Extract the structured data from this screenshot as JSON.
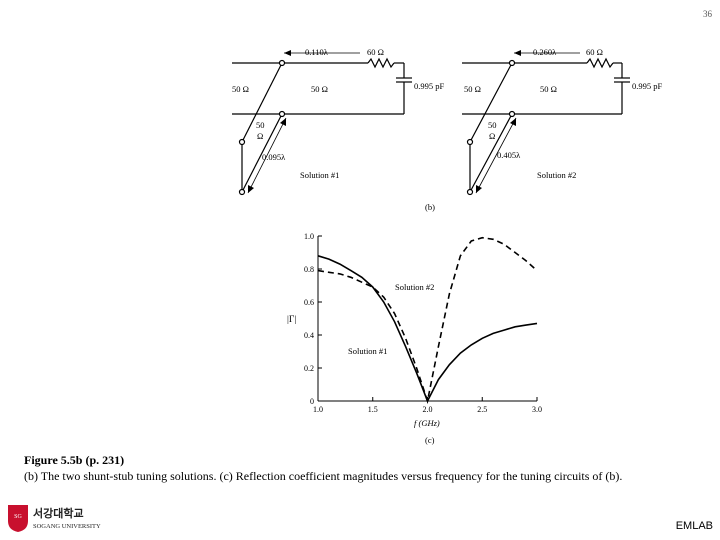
{
  "slide": {
    "number": "36",
    "footer_label": "EMLAB"
  },
  "circuits": [
    {
      "stub_length_label": "0.110λ",
      "resistor_label": "60 Ω",
      "capacitor_label": "0.995 pF",
      "left_line_label": "50 Ω",
      "mid_line_label": "50 Ω",
      "stub_impedance_label": "50",
      "stub_impedance_unit": "Ω",
      "stub_distance_label": "0.095λ",
      "solution_label": "Solution #1"
    },
    {
      "stub_length_label": "0.260λ",
      "resistor_label": "60 Ω",
      "capacitor_label": "0.995 pF",
      "left_line_label": "50 Ω",
      "mid_line_label": "50 Ω",
      "stub_impedance_label": "50",
      "stub_impedance_unit": "Ω",
      "stub_distance_label": "0.405λ",
      "solution_label": "Solution #2"
    }
  ],
  "panel_b_label": "(b)",
  "panel_c_label": "(c)",
  "chart_data": {
    "type": "line",
    "xlabel": "f (GHz)",
    "ylabel": "|Γ|",
    "xlim": [
      1.0,
      3.0
    ],
    "ylim": [
      0,
      1.0
    ],
    "x_ticks": [
      "1.0",
      "1.5",
      "2.0",
      "2.5",
      "3.0"
    ],
    "y_ticks": [
      "0",
      "0.2",
      "0.4",
      "0.6",
      "0.8",
      "1.0"
    ],
    "grid": false,
    "series": [
      {
        "name": "Solution #1",
        "style": "solid",
        "x": [
          1.0,
          1.1,
          1.2,
          1.3,
          1.4,
          1.5,
          1.6,
          1.7,
          1.8,
          1.9,
          2.0,
          2.1,
          2.2,
          2.3,
          2.4,
          2.5,
          2.6,
          2.7,
          2.8,
          2.9,
          3.0
        ],
        "y": [
          0.88,
          0.86,
          0.83,
          0.79,
          0.75,
          0.69,
          0.6,
          0.48,
          0.33,
          0.17,
          0.0,
          0.13,
          0.22,
          0.29,
          0.34,
          0.38,
          0.41,
          0.43,
          0.45,
          0.46,
          0.47
        ]
      },
      {
        "name": "Solution #2",
        "style": "dashed",
        "x": [
          1.0,
          1.1,
          1.2,
          1.3,
          1.4,
          1.5,
          1.6,
          1.7,
          1.8,
          1.9,
          2.0,
          2.1,
          2.2,
          2.3,
          2.4,
          2.5,
          2.6,
          2.7,
          2.8,
          2.9,
          3.0
        ],
        "y": [
          0.79,
          0.78,
          0.77,
          0.75,
          0.72,
          0.69,
          0.63,
          0.53,
          0.38,
          0.2,
          0.0,
          0.33,
          0.65,
          0.88,
          0.97,
          0.99,
          0.98,
          0.95,
          0.9,
          0.85,
          0.79
        ]
      }
    ]
  },
  "caption": {
    "title": "Figure 5.5b (p. 231)",
    "body": "(b) The two shunt-stub tuning solutions. (c) Reflection coefficient magnitudes versus frequency for the tuning circuits of (b)."
  },
  "logo": {
    "korean_text": "서강대학교",
    "english_text": "SOGANG UNIVERSITY",
    "accent_color": "#c8102e"
  }
}
